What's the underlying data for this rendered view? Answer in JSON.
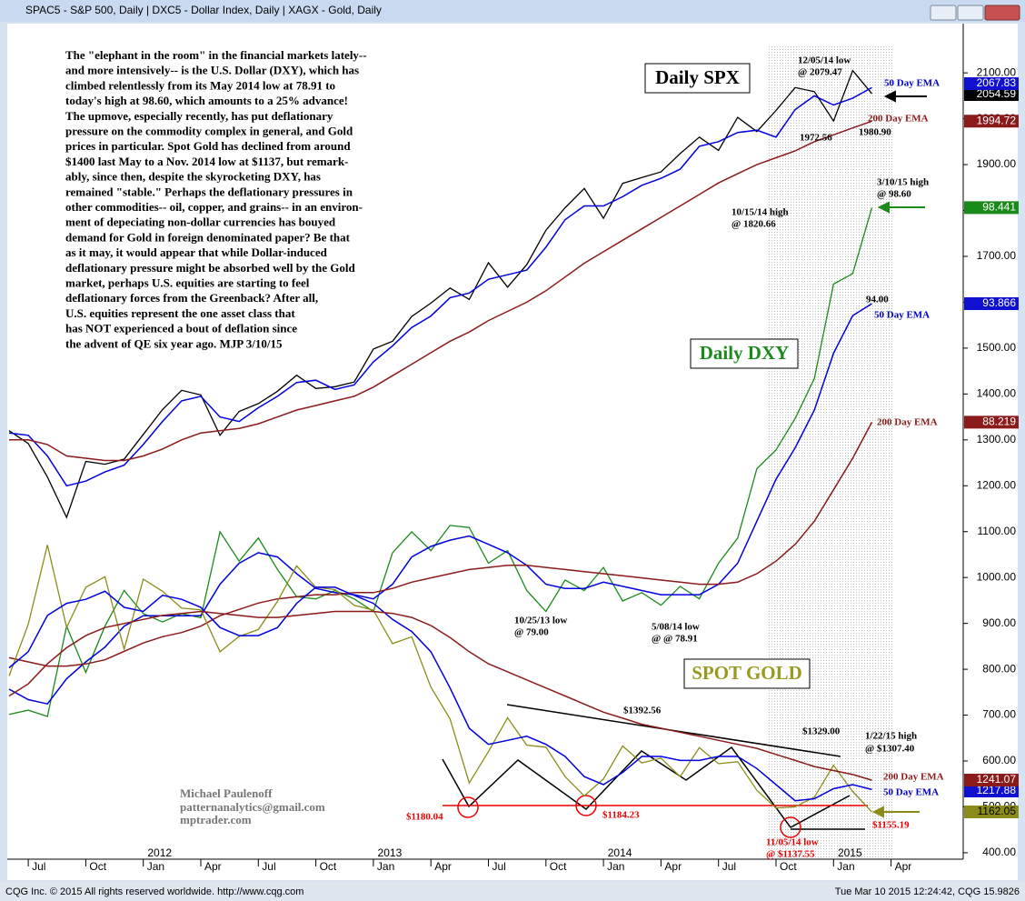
{
  "window_title": "SPAC5 - S&P 500, Daily  |  DXC5 - Dollar Index, Daily  |  XAGX - Gold, Daily",
  "status_left": "CQG Inc. © 2015 All rights reserved worldwide. http://www.cqg.com",
  "status_right": "Tue Mar 10 2015 12:24:42, CQG 15.9826",
  "chart_data": {
    "type": "line",
    "categories": [
      null,
      "Jul",
      null,
      null,
      "Oct",
      null,
      null,
      "Jan",
      null,
      null,
      "Apr",
      null,
      null,
      "Jul",
      null,
      null,
      "Oct",
      null,
      null,
      "Jan",
      null,
      null,
      "Apr",
      null,
      null,
      "Jul",
      null,
      null,
      "Oct",
      null,
      null,
      "Jan",
      null,
      null,
      "Apr",
      null,
      null,
      "Jul",
      null,
      null,
      "Oct",
      null,
      null,
      "Jan",
      null,
      null,
      "Apr"
    ],
    "year_labels": [
      "2012",
      "2013",
      "2014",
      "2015"
    ],
    "ylim": [
      386,
      2239
    ],
    "yticks": [
      {
        "value": 400,
        "label": "400.00"
      },
      {
        "value": 500,
        "label": "500.00"
      },
      {
        "value": 600,
        "label": "600.00"
      },
      {
        "value": 700,
        "label": "700.00"
      },
      {
        "value": 800,
        "label": "800.00"
      },
      {
        "value": 900,
        "label": "900.00"
      },
      {
        "value": 1000,
        "label": "1000.00"
      },
      {
        "value": 1100,
        "label": "1100.00"
      },
      {
        "value": 1200,
        "label": "1200.00"
      },
      {
        "value": 1300,
        "label": "1300.00"
      },
      {
        "value": 1400,
        "label": "1400.00"
      },
      {
        "value": 1500,
        "label": "1500.00"
      },
      {
        "value": 1600,
        "label": "1600.00"
      },
      {
        "value": 1700,
        "label": "1700.00"
      },
      {
        "value": 1800,
        "label": "1800.00"
      },
      {
        "value": 1900,
        "label": "1900.00"
      },
      {
        "value": 2000,
        "label": "2000.00"
      },
      {
        "value": 2100,
        "label": "2100.00"
      }
    ],
    "series": [
      {
        "name": "S&P 500",
        "color": "#000000",
        "width": 1.3,
        "ylim": [
          386,
          2239
        ],
        "values": [
          1320,
          1292,
          1219,
          1131,
          1253,
          1247,
          1258,
          1312,
          1366,
          1408,
          1398,
          1310,
          1362,
          1379,
          1406,
          1441,
          1412,
          1416,
          1426,
          1498,
          1515,
          1569,
          1598,
          1631,
          1606,
          1686,
          1633,
          1682,
          1757,
          1806,
          1848,
          1783,
          1859,
          1872,
          1884,
          1924,
          1960,
          1931,
          2003,
          1972,
          2018,
          2068,
          2059,
          1995,
          2105,
          2054.59,
          null
        ]
      },
      {
        "name": "SPX 50 Day EMA",
        "color": "#0000dd",
        "width": 1.5,
        "ylim": [
          386,
          2239
        ],
        "values": [
          1315,
          1310,
          1265,
          1200,
          1210,
          1230,
          1245,
          1290,
          1340,
          1385,
          1395,
          1350,
          1340,
          1370,
          1395,
          1425,
          1430,
          1410,
          1420,
          1470,
          1505,
          1545,
          1570,
          1610,
          1620,
          1650,
          1660,
          1670,
          1720,
          1780,
          1810,
          1810,
          1830,
          1855,
          1870,
          1890,
          1940,
          1950,
          1970,
          1975,
          1960,
          2020,
          2050,
          2030,
          2045,
          2067.83,
          null
        ]
      },
      {
        "name": "SPX 200 Day EMA",
        "color": "#8b1a1a",
        "width": 1.5,
        "ylim": [
          386,
          2239
        ],
        "values": [
          1300,
          1300,
          1290,
          1265,
          1260,
          1255,
          1255,
          1265,
          1280,
          1300,
          1315,
          1320,
          1325,
          1335,
          1350,
          1365,
          1375,
          1385,
          1395,
          1415,
          1440,
          1465,
          1490,
          1515,
          1535,
          1560,
          1580,
          1600,
          1625,
          1655,
          1685,
          1710,
          1735,
          1760,
          1785,
          1810,
          1835,
          1860,
          1880,
          1900,
          1915,
          1930,
          1950,
          1965,
          1980,
          1994.72,
          null
        ]
      },
      {
        "name": "Dollar Index",
        "color": "#1a8a1a",
        "width": 1.3,
        "ylim": [
          67.4,
          107.9
        ],
        "values": [
          74.3,
          74.5,
          74.2,
          78.5,
          76.3,
          78.5,
          80.2,
          79.1,
          78.7,
          79.1,
          78.9,
          83.0,
          81.6,
          82.7,
          81.2,
          79.9,
          79.8,
          80.2,
          79.8,
          79.2,
          82.0,
          83.0,
          82.1,
          83.3,
          83.2,
          81.5,
          82.1,
          80.2,
          79.2,
          80.7,
          80.2,
          81.3,
          79.7,
          80.1,
          79.5,
          80.4,
          79.8,
          81.5,
          82.7,
          86.0,
          86.9,
          88.4,
          90.3,
          94.8,
          95.3,
          98.441,
          null
        ]
      },
      {
        "name": "DXY 50 Day EMA",
        "color": "#0000dd",
        "width": 1.5,
        "ylim": [
          67.4,
          107.9
        ],
        "values": [
          75.5,
          75,
          74.8,
          76,
          76.8,
          77.5,
          78.5,
          79,
          79,
          79,
          79,
          80.5,
          81.5,
          82,
          81.8,
          81,
          80.3,
          80.1,
          80,
          79.8,
          80.5,
          81.8,
          82.3,
          82.6,
          82.8,
          82.4,
          82,
          81.4,
          80.5,
          80.3,
          80.3,
          80.6,
          80.4,
          80.2,
          80,
          80,
          80,
          80.5,
          81.5,
          83.5,
          85.5,
          87,
          88.8,
          91.5,
          93.3,
          93.866,
          null
        ]
      },
      {
        "name": "DXY 200 Day EMA",
        "color": "#8b1a1a",
        "width": 1.5,
        "ylim": [
          67.4,
          107.9
        ],
        "values": [
          77,
          76.8,
          76.6,
          76.6,
          76.7,
          76.9,
          77.3,
          77.7,
          78,
          78.2,
          78.5,
          79,
          79.3,
          79.6,
          79.8,
          79.9,
          80,
          80,
          80.1,
          80.1,
          80.3,
          80.6,
          80.8,
          81,
          81.2,
          81.3,
          81.4,
          81.4,
          81.3,
          81.2,
          81.1,
          81,
          80.9,
          80.8,
          80.7,
          80.6,
          80.5,
          80.5,
          80.6,
          81,
          81.6,
          82.4,
          83.5,
          85,
          86.5,
          88.219,
          null
        ]
      },
      {
        "name": "Gold",
        "color": "#8c8c1a",
        "width": 1.3,
        "ylim": [
          1045,
          3155
        ],
        "values": [
          1500,
          1628,
          1825,
          1620,
          1720,
          1746,
          1566,
          1740,
          1710,
          1668,
          1664,
          1560,
          1598,
          1615,
          1685,
          1773,
          1720,
          1714,
          1675,
          1663,
          1580,
          1597,
          1472,
          1393,
          1234,
          1312,
          1396,
          1328,
          1323,
          1250,
          1202,
          1244,
          1326,
          1284,
          1296,
          1250,
          1322,
          1282,
          1287,
          1216,
          1172,
          1175,
          1199,
          1278,
          1213,
          1162.05,
          null
        ]
      },
      {
        "name": "Gold 50 Day EMA",
        "color": "#0000dd",
        "width": 1.5,
        "ylim": [
          1045,
          3155
        ],
        "values": [
          1520,
          1560,
          1650,
          1680,
          1690,
          1710,
          1670,
          1660,
          1700,
          1690,
          1670,
          1620,
          1600,
          1600,
          1620,
          1680,
          1720,
          1720,
          1700,
          1680,
          1640,
          1610,
          1560,
          1470,
          1370,
          1330,
          1340,
          1350,
          1330,
          1300,
          1250,
          1230,
          1260,
          1300,
          1300,
          1290,
          1290,
          1300,
          1300,
          1270,
          1230,
          1190,
          1195,
          1220,
          1230,
          1217.88,
          null
        ]
      },
      {
        "name": "Gold 200 Day EMA",
        "color": "#8b1a1a",
        "width": 1.5,
        "ylim": [
          1045,
          3155
        ],
        "values": [
          1450,
          1480,
          1530,
          1570,
          1600,
          1620,
          1630,
          1640,
          1650,
          1655,
          1660,
          1655,
          1650,
          1645,
          1645,
          1650,
          1655,
          1660,
          1660,
          1660,
          1655,
          1645,
          1625,
          1595,
          1560,
          1530,
          1510,
          1490,
          1470,
          1450,
          1430,
          1410,
          1395,
          1380,
          1370,
          1360,
          1350,
          1340,
          1330,
          1320,
          1305,
          1290,
          1275,
          1265,
          1255,
          1241.07,
          null
        ]
      }
    ],
    "commentary": [
      "The \"elephant in the room\" in the financial markets lately--",
      "and more intensively-- is the U.S. Dollar (DXY), which has",
      "climbed relentlessly from its May 2014 low at 78.91 to",
      "today's high at 98.60, which amounts to a 25% advance!",
      "The upmove, especially recently, has put deflationary",
      "pressure on the commodity complex in general, and Gold",
      "prices in particular. Spot Gold has declined from around",
      "$1400 last May to a Nov. 2014 low at $1137, but remark-",
      "ably, since then, despite the skyrocketing DXY, has",
      "remained \"stable.\" Perhaps the deflationary pressures in",
      "other commodities-- oil, copper, and grains-- in an environ-",
      "ment of depeciating non-dollar currencies has bouyed",
      "demand for Gold in foreign denominated paper? Be that",
      "as it may, it would appear that while Dollar-induced",
      "deflationary pressure might be absorbed well by the Gold",
      "market, perhaps U.S. equities are starting to feel",
      "deflationary forces from the Greenback? After all,",
      "U.S. equities represent the one asset class that",
      "has NOT experienced a bout of deflation since",
      "the advent of QE six year ago.  MJP 3/10/15"
    ],
    "boxes": [
      "Daily SPX",
      "Daily DXY",
      "SPOT GOLD"
    ],
    "annotations": [
      "12/05/14 low",
      "@ 2079.47",
      "50 Day EMA",
      "200 Day EMA",
      "1972.56",
      "1980.90",
      "3/10/15 high",
      "@ 98.60",
      "10/15/14 high",
      "@ 1820.66",
      "94.00",
      "50 Day EMA",
      "200 Day EMA",
      "10/25/13 low",
      "@ 79.00",
      "5/08/14 low",
      "@ @ 78.91",
      "$1392.56",
      "$1329.00",
      "1/22/15 high",
      "@ $1307.40",
      "200 Day EMA",
      "50 Day EMA",
      "$1180.04",
      "$1184.23",
      "$1155.19",
      "11/05/14 low",
      "@ $1137.55",
      "Michael Paulenoff",
      "patternanalytics@gmail.com",
      "mptrader.com"
    ]
  }
}
